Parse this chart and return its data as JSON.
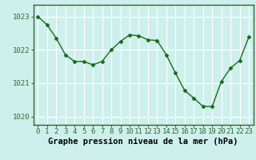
{
  "x": [
    0,
    1,
    2,
    3,
    4,
    5,
    6,
    7,
    8,
    9,
    10,
    11,
    12,
    13,
    14,
    15,
    16,
    17,
    18,
    19,
    20,
    21,
    22,
    23
  ],
  "y": [
    1023.0,
    1022.75,
    1022.35,
    1021.85,
    1021.65,
    1021.65,
    1021.55,
    1021.65,
    1022.0,
    1022.25,
    1022.45,
    1022.42,
    1022.3,
    1022.28,
    1021.85,
    1021.3,
    1020.78,
    1020.55,
    1020.3,
    1020.3,
    1021.05,
    1021.45,
    1021.68,
    1022.38
  ],
  "line_color": "#1a6b1a",
  "marker": "D",
  "marker_size": 2.5,
  "background_color": "#cef0ec",
  "grid_color": "#ffffff",
  "ylabel_ticks": [
    1020,
    1021,
    1022,
    1023
  ],
  "xlabel_label": "Graphe pression niveau de la mer (hPa)",
  "xlim": [
    -0.5,
    23.5
  ],
  "ylim": [
    1019.75,
    1023.35
  ],
  "xtick_labels": [
    "0",
    "1",
    "2",
    "3",
    "4",
    "5",
    "6",
    "7",
    "8",
    "9",
    "10",
    "11",
    "12",
    "13",
    "14",
    "15",
    "16",
    "17",
    "18",
    "19",
    "20",
    "21",
    "22",
    "23"
  ],
  "axis_color": "#336633",
  "tick_label_fontsize": 6.5,
  "xlabel_fontsize": 7.5,
  "xlabel_fontweight": "bold",
  "spine_color": "#336633",
  "linewidth": 1.0
}
